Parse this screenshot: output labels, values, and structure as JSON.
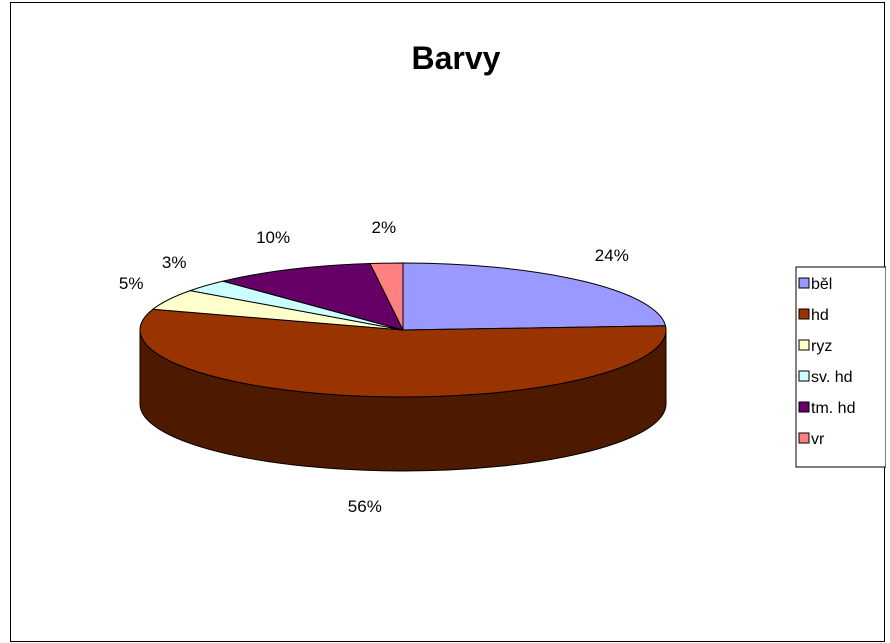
{
  "chart_data": {
    "type": "pie",
    "title": "Barvy",
    "legend_position": "right",
    "slices": [
      {
        "label": "běl",
        "value": 24,
        "display": "24%",
        "color": "#9999FF"
      },
      {
        "label": "hd",
        "value": 56,
        "display": "56%",
        "color": "#993300"
      },
      {
        "label": "ryz",
        "value": 5,
        "display": "5%",
        "color": "#FFFFCC"
      },
      {
        "label": "sv. hd",
        "value": 3,
        "display": "3%",
        "color": "#CCFFFF"
      },
      {
        "label": "tm. hd",
        "value": 10,
        "display": "10%",
        "color": "#660066"
      },
      {
        "label": "vr",
        "value": 2,
        "display": "2%",
        "color": "#FF8080"
      }
    ]
  }
}
